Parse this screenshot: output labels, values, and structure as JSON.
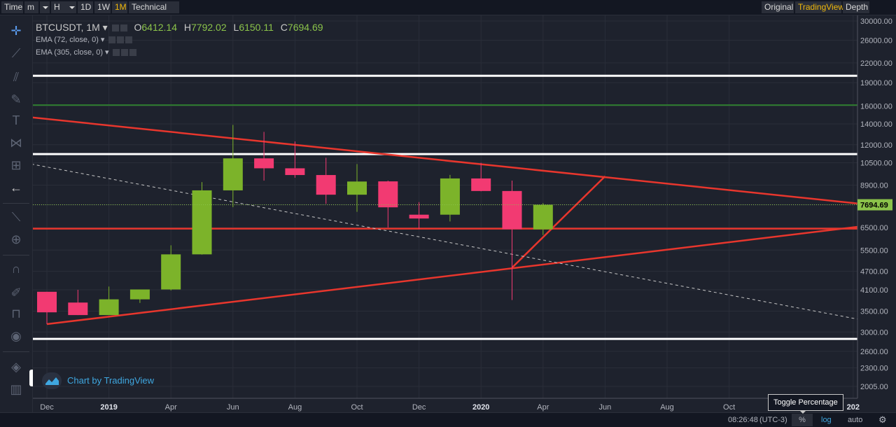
{
  "topbar": {
    "time_label": "Time",
    "minute_label": "m",
    "hour_label": "H",
    "d1_label": "1D",
    "w1_label": "1W",
    "m1_label": "1M",
    "technical_label": "Technical Ind",
    "original_label": "Original",
    "tradingview_label": "TradingView",
    "depth_label": "Depth"
  },
  "legend": {
    "symbol": "BTCUSDT, 1M",
    "o_key": "O",
    "o_val": "6412.14",
    "h_key": "H",
    "h_val": "7792.02",
    "l_key": "L",
    "l_val": "6150.11",
    "c_key": "C",
    "c_val": "7694.69",
    "ema1": "EMA (72, close, 0)",
    "ema2": "EMA (305, close, 0)"
  },
  "watermark": {
    "text": "Chart by TradingView"
  },
  "bottombar": {
    "time": "08:26:48",
    "tz": "(UTC-3)",
    "percent": "%",
    "log": "log",
    "auto": "auto"
  },
  "tooltip": {
    "text": "Toggle Percentage"
  },
  "colors": {
    "up": "#7cb32a",
    "down": "#f23a72",
    "trend": "#e8362d",
    "level": "#ffffff",
    "green_level": "#2f7d2f",
    "price_label_bg": "#8bc34a"
  },
  "chart_data": {
    "type": "candlestick",
    "y_scale": "log",
    "ylim": [
      1900,
      31000
    ],
    "y_ticks": [
      30000,
      26000,
      22000,
      19000,
      16000,
      14000,
      12000,
      10500,
      8900,
      7700,
      6500,
      5500,
      4700,
      4100,
      3500,
      3000,
      2600,
      2300,
      2005
    ],
    "y_tick_labels": [
      "30000.00",
      "26000.00",
      "22000.00",
      "19000.00",
      "16000.00",
      "14000.00",
      "12000.00",
      "10500.00",
      "8900.00",
      "7700.00",
      "6500.00",
      "5500.00",
      "4700.00",
      "4100.00",
      "3500.00",
      "3000.00",
      "2600.00",
      "2300.00",
      "2005.00"
    ],
    "x_ticks": [
      "Dec",
      "2019",
      "Apr",
      "Jun",
      "Aug",
      "Oct",
      "Dec",
      "2020",
      "Apr",
      "Jun",
      "Aug",
      "Oct",
      "202"
    ],
    "x_tick_index": [
      0,
      2,
      4,
      6,
      8,
      10,
      12,
      14,
      16,
      18,
      20,
      22,
      26
    ],
    "candles": [
      {
        "o": 4040,
        "h": 4040,
        "l": 3180,
        "c": 3470
      },
      {
        "o": 3730,
        "h": 4100,
        "l": 3400,
        "c": 3400
      },
      {
        "o": 3400,
        "h": 4200,
        "l": 3400,
        "c": 3820
      },
      {
        "o": 3820,
        "h": 4100,
        "l": 3720,
        "c": 4110
      },
      {
        "o": 4110,
        "h": 5700,
        "l": 4080,
        "c": 5330
      },
      {
        "o": 5330,
        "h": 9100,
        "l": 5320,
        "c": 8560
      },
      {
        "o": 8560,
        "h": 13900,
        "l": 7560,
        "c": 10850
      },
      {
        "o": 10850,
        "h": 13200,
        "l": 9200,
        "c": 10080
      },
      {
        "o": 10080,
        "h": 12300,
        "l": 9400,
        "c": 9590
      },
      {
        "o": 9590,
        "h": 10900,
        "l": 7750,
        "c": 8290
      },
      {
        "o": 8290,
        "h": 10400,
        "l": 7300,
        "c": 9140
      },
      {
        "o": 9150,
        "h": 9200,
        "l": 6500,
        "c": 7550
      },
      {
        "o": 7150,
        "h": 7850,
        "l": 6430,
        "c": 6950
      },
      {
        "o": 7150,
        "h": 9600,
        "l": 6800,
        "c": 9350
      },
      {
        "o": 9350,
        "h": 10500,
        "l": 8500,
        "c": 8520
      },
      {
        "o": 8520,
        "h": 9200,
        "l": 3800,
        "c": 6420
      },
      {
        "o": 6412.14,
        "h": 7792.02,
        "l": 6150.11,
        "c": 7694.69
      }
    ],
    "last_price": "7694.69",
    "horizontal_levels": [
      {
        "price": 20000,
        "color": "white"
      },
      {
        "price": 16100,
        "color": "green"
      },
      {
        "price": 11200,
        "color": "white"
      },
      {
        "price": 6450,
        "color": "red"
      },
      {
        "price": 2850,
        "color": "white"
      }
    ],
    "trendlines": [
      {
        "from": [
          -0.5,
          14700
        ],
        "to": [
          26.5,
          7700
        ],
        "style": "solid"
      },
      {
        "from": [
          0,
          3180
        ],
        "to": [
          26.5,
          6600
        ],
        "style": "solid"
      },
      {
        "from": [
          15,
          4830
        ],
        "to": [
          18,
          9500
        ],
        "style": "solid"
      },
      {
        "from": [
          -0.5,
          10400
        ],
        "to": [
          26.5,
          3250
        ],
        "style": "dashed"
      }
    ]
  }
}
